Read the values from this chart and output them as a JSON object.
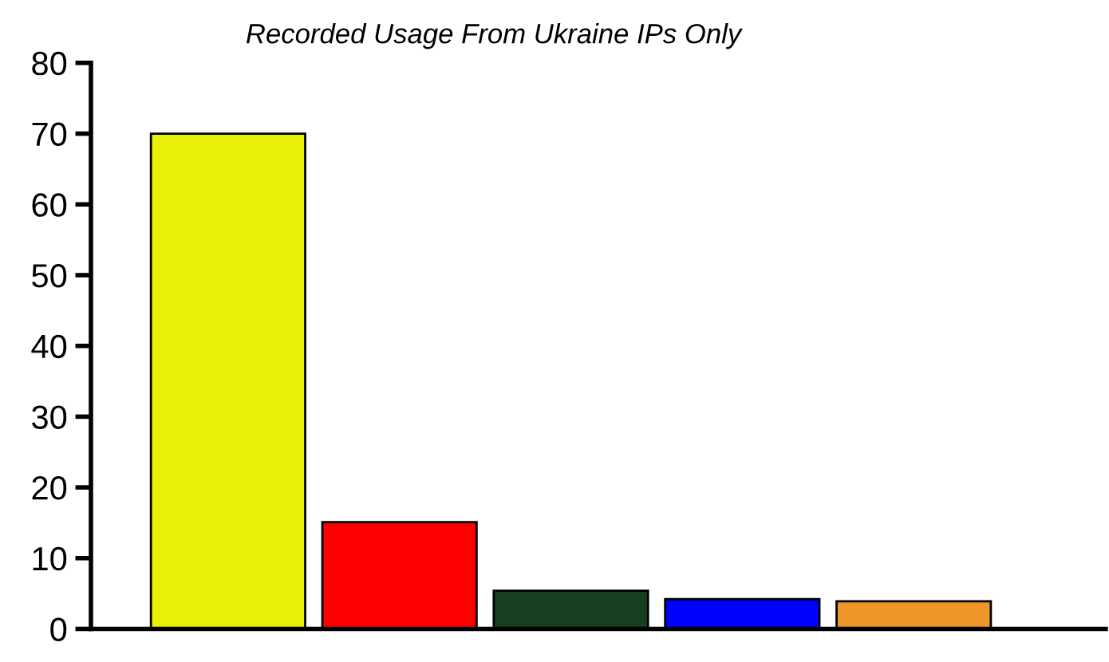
{
  "chart_data": {
    "type": "bar",
    "subtitle": "Recorded Usage From Ukraine IPs Only",
    "categories": [
      null,
      null,
      null,
      null,
      null
    ],
    "values": [
      70,
      15.1,
      5.4,
      4.2,
      3.9
    ],
    "colors": [
      "#e8f00a",
      "#ff0000",
      "#173f22",
      "#0000ff",
      "#ee9628"
    ],
    "ylim": [
      0,
      80
    ],
    "yticks": [
      0,
      10,
      20,
      30,
      40,
      50,
      60,
      70,
      80
    ],
    "grid": false,
    "legend": false
  }
}
